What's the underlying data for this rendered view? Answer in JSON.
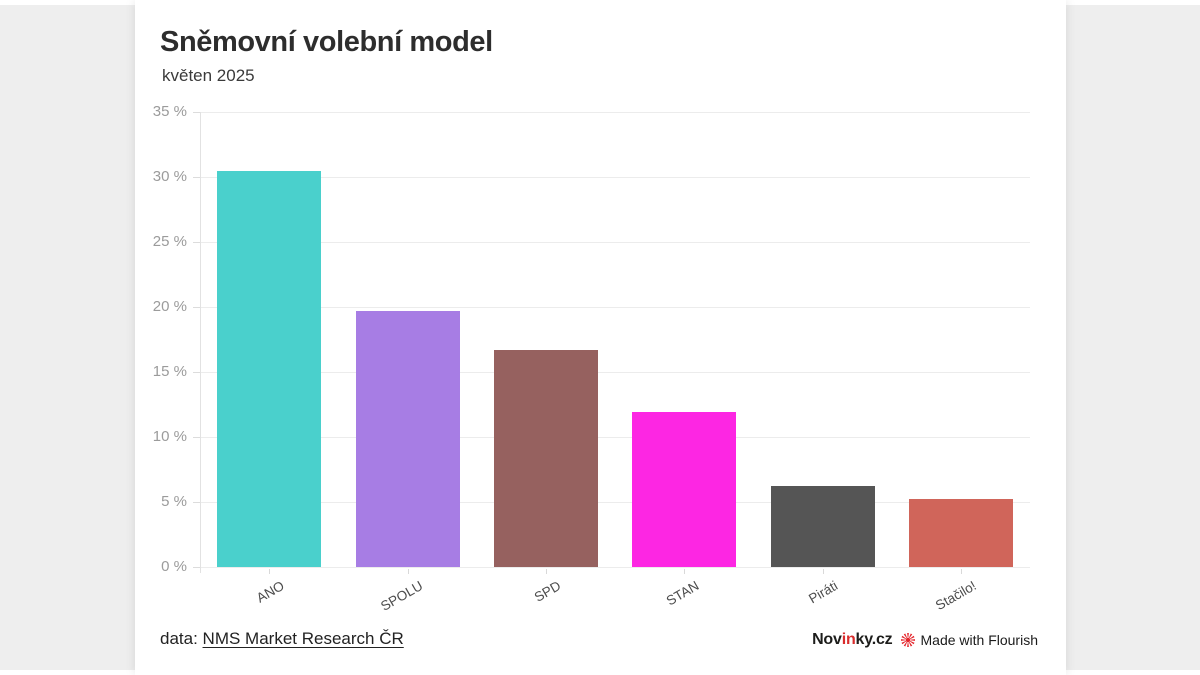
{
  "header": {
    "title": "Sněmovní volební model",
    "subtitle": "květen 2025"
  },
  "footer": {
    "data_prefix": "data: ",
    "source_link": "NMS Market Research ČR",
    "brand": {
      "part1": "Nov",
      "part2": "in",
      "part3": "ky.cz"
    },
    "flourish_credit": "Made with Flourish"
  },
  "colors": {
    "backdrop_gray": "#eeeeee",
    "card_white": "#ffffff",
    "grid": "#ececec",
    "axis_label_gray": "#9b9b9b",
    "brand_red": "#d92c2c",
    "flourish_red": "#e4262c"
  },
  "chart_data": {
    "type": "bar",
    "title": "Sněmovní volební model",
    "subtitle": "květen 2025",
    "categories": [
      "ANO",
      "SPOLU",
      "SPD",
      "STAN",
      "Piráti",
      "Stačilo!"
    ],
    "values": [
      30.5,
      19.7,
      16.7,
      11.9,
      6.2,
      5.2
    ],
    "bar_colors": [
      "#4ad0cc",
      "#a77de4",
      "#96615f",
      "#fd26e3",
      "#555555",
      "#d0655a"
    ],
    "xlabel": "",
    "ylabel": "",
    "ylim": [
      0,
      35
    ],
    "ytick_step": 5,
    "ytick_labels": [
      "0 %",
      "5 %",
      "10 %",
      "15 %",
      "20 %",
      "25 %",
      "30 %",
      "35 %"
    ],
    "grid": true,
    "legend": false,
    "x_label_rotation_deg": -30
  }
}
